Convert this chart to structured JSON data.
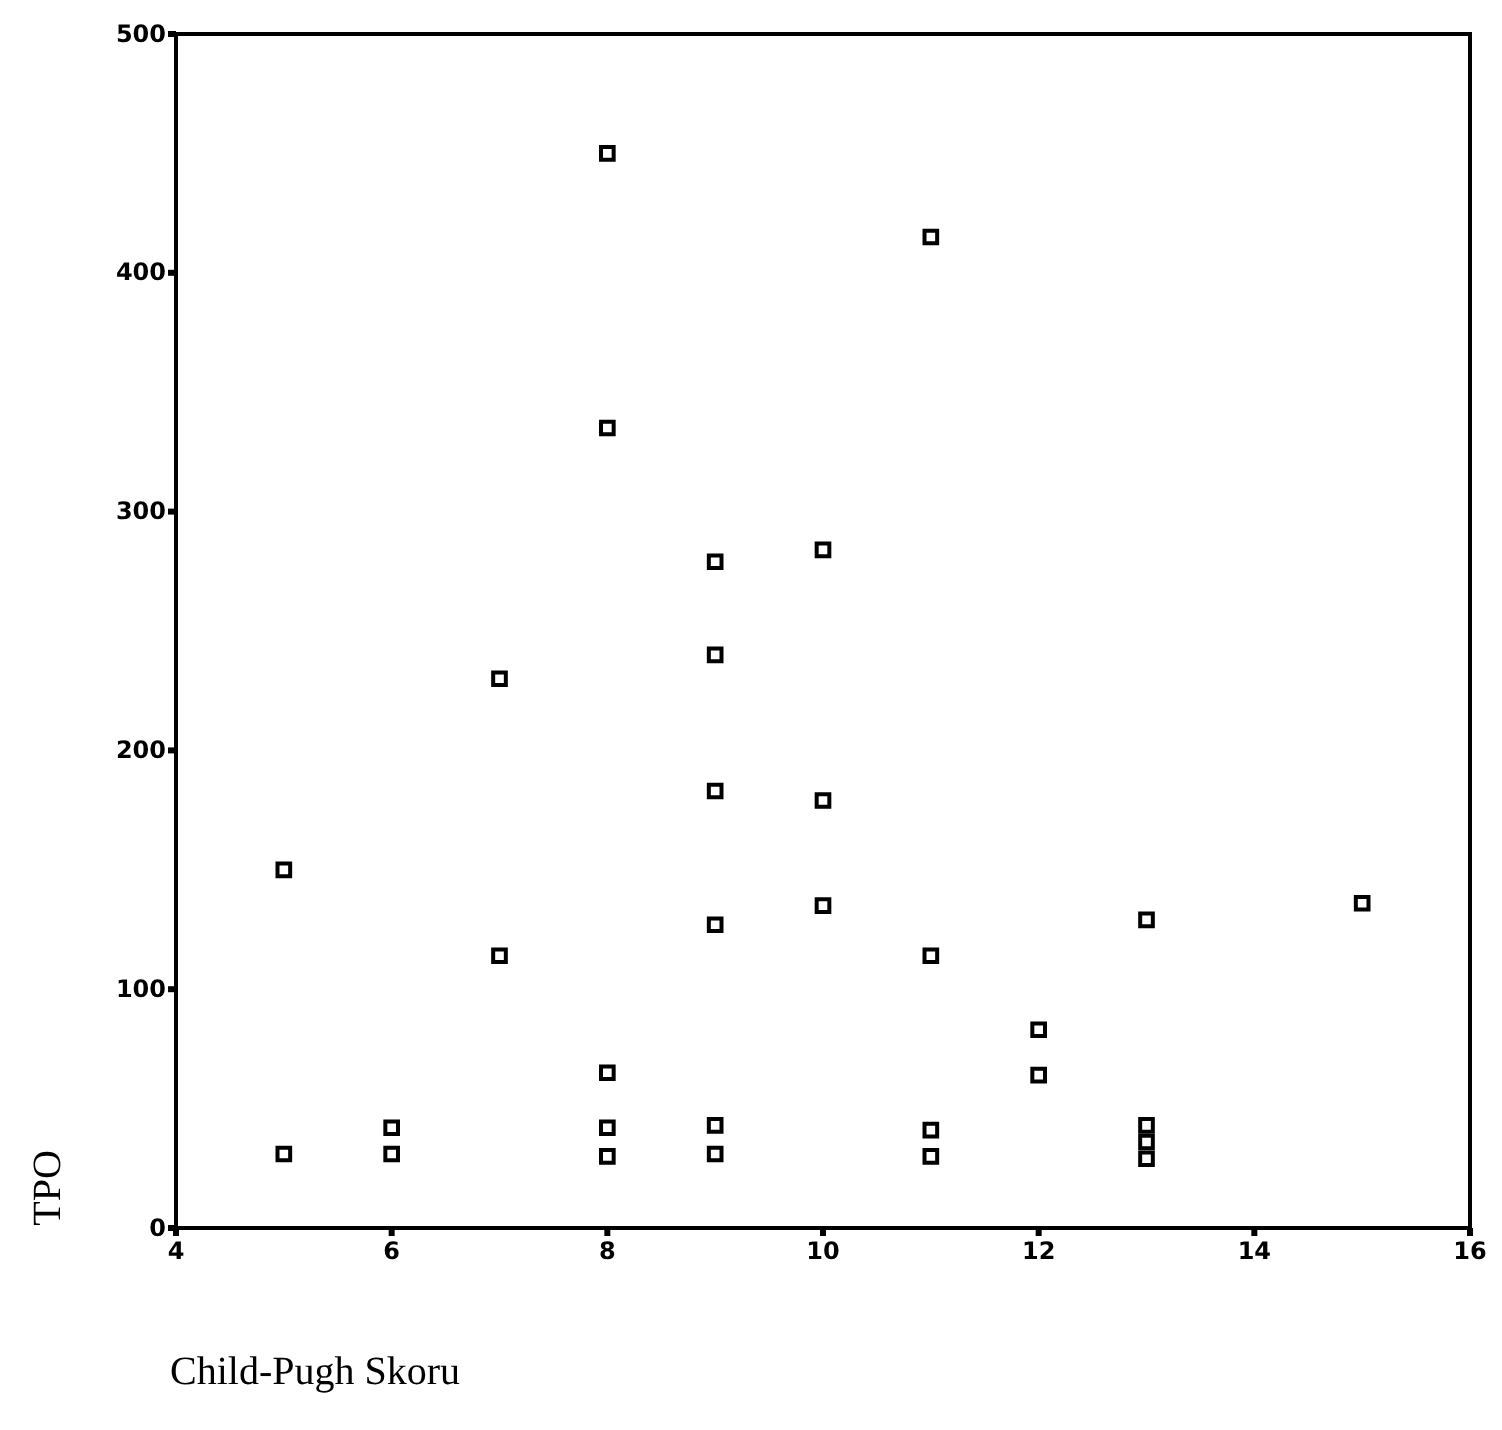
{
  "chart_data": {
    "type": "scatter",
    "xlabel": "Child-Pugh Skoru",
    "ylabel": "TPO",
    "x": [
      5,
      5,
      6,
      6,
      7,
      7,
      8,
      8,
      8,
      8,
      8,
      9,
      9,
      9,
      9,
      9,
      9,
      10,
      10,
      10,
      11,
      11,
      11,
      11,
      12,
      12,
      13,
      13,
      13,
      13,
      15
    ],
    "values": [
      150,
      31,
      42,
      31,
      230,
      114,
      450,
      335,
      65,
      42,
      30,
      279,
      240,
      183,
      127,
      43,
      31,
      284,
      179,
      135,
      415,
      114,
      41,
      30,
      83,
      64,
      129,
      43,
      36,
      29,
      136
    ],
    "color": "#000000",
    "marker": "square",
    "grid": false,
    "xlim": [
      4,
      16
    ],
    "xticks": [
      4,
      6,
      8,
      10,
      12,
      14,
      16
    ],
    "ylim": [
      0,
      500
    ],
    "yticks": [
      0,
      100,
      200,
      300,
      400,
      500
    ]
  }
}
